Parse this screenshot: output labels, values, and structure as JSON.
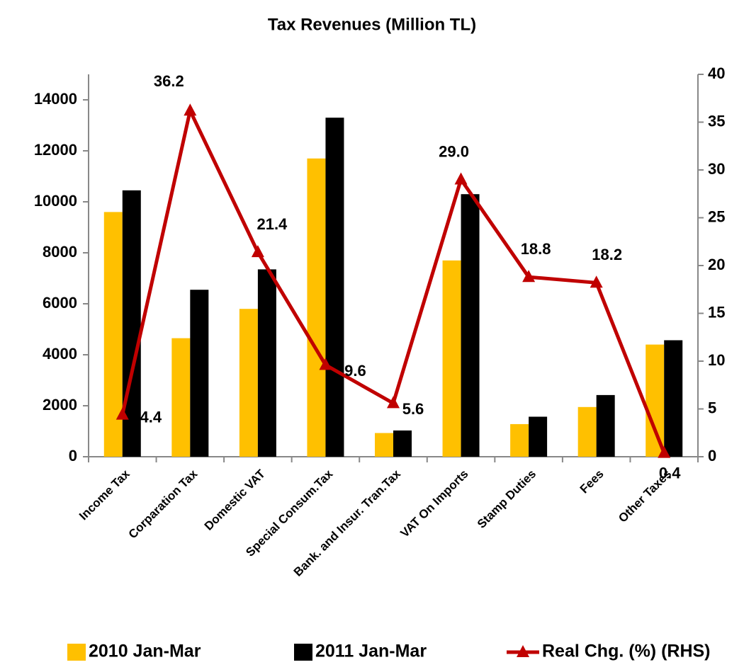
{
  "chart_data": {
    "type": "bar_line",
    "title": "Tax Revenues (Million TL)",
    "categories": [
      "Income Tax",
      "Corparation Tax",
      "Domestic VAT",
      "Special Consum.Tax",
      "Bank. and Insur. Tran.Tax",
      "VAT On Imports",
      "Stamp Duties",
      "Fees",
      "Other Taxes"
    ],
    "series": [
      {
        "name": "2010 Jan-Mar",
        "color": "#ffc000",
        "values": [
          9600,
          4650,
          5800,
          11700,
          930,
          7700,
          1280,
          1950,
          4400
        ]
      },
      {
        "name": "2011 Jan-Mar",
        "color": "#000000",
        "values": [
          10450,
          6550,
          7350,
          13300,
          1030,
          10300,
          1570,
          2420,
          4570
        ]
      },
      {
        "name": "Real Chg. (%) (RHS)",
        "color": "#c00000",
        "axis": "y2",
        "values": [
          4.4,
          36.2,
          21.4,
          9.6,
          5.6,
          29.0,
          18.8,
          18.2,
          0.4
        ],
        "value_labels": [
          "4.4",
          "36.2",
          "21.4",
          "9.6",
          "5.6",
          "29.0",
          "18.8",
          "18.2",
          "0.4"
        ]
      }
    ],
    "ylim": [
      0,
      15000
    ],
    "yticks": [
      0,
      2000,
      4000,
      6000,
      8000,
      10000,
      12000,
      14000
    ],
    "y2lim": [
      0,
      40
    ],
    "y2ticks": [
      0,
      5,
      10,
      15,
      20,
      25,
      30,
      35,
      40
    ],
    "grid": false,
    "legend": "bottom"
  }
}
